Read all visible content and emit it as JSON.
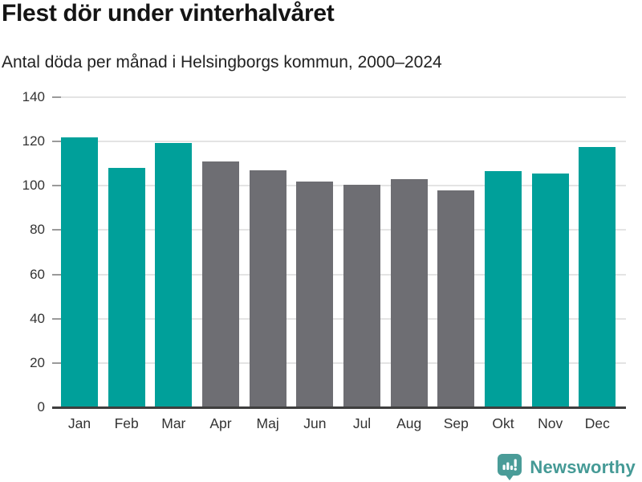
{
  "header": {
    "title": "Flest dör under vinterhalvåret",
    "subtitle": "Antal döda per månad i Helsingborgs kommun, 2000–2024"
  },
  "chart_data": {
    "type": "bar",
    "title": "Flest dör under vinterhalvåret",
    "subtitle": "Antal döda per månad i Helsingborgs kommun, 2000–2024",
    "categories": [
      "Jan",
      "Feb",
      "Mar",
      "Apr",
      "Maj",
      "Jun",
      "Jul",
      "Aug",
      "Sep",
      "Okt",
      "Nov",
      "Dec"
    ],
    "values": [
      122,
      108,
      119.5,
      111,
      107,
      102,
      100.5,
      103,
      98,
      106.5,
      105.5,
      117.5
    ],
    "bar_color_keys": [
      "teal",
      "teal",
      "teal",
      "gray",
      "gray",
      "gray",
      "gray",
      "gray",
      "gray",
      "teal",
      "teal",
      "teal"
    ],
    "colors": {
      "teal": "#00a09a",
      "gray": "#6e6e73"
    },
    "xlabel": "",
    "ylabel": "",
    "ylim": [
      0,
      140
    ],
    "yticks": [
      0,
      20,
      40,
      60,
      80,
      100,
      120,
      140
    ],
    "grid": true,
    "legend": false
  },
  "footer": {
    "brand": "Newsworthy",
    "brand_color": "#459a96",
    "icon_color": "#4a9c98",
    "icon": "newsworthy-bar-chart-bubble"
  }
}
